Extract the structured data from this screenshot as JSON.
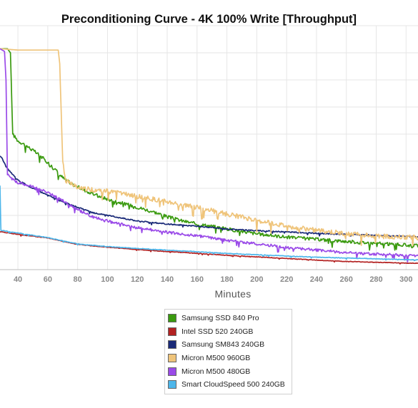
{
  "chart_data": {
    "type": "line",
    "title": "Preconditioning Curve - 4K 100% Write [Throughput]",
    "xlabel": "Minutes",
    "ylabel": "",
    "xlim": [
      28,
      308
    ],
    "ylim": [
      0,
      9
    ],
    "x_ticks": [
      40,
      60,
      80,
      100,
      120,
      140,
      160,
      180,
      200,
      220,
      240,
      260,
      280,
      300
    ],
    "grid": true,
    "legend_position": "bottom",
    "series": [
      {
        "name": "Samsung SSD 840 Pro",
        "color": "#3a9a0f",
        "noise": 0.12,
        "points": [
          [
            28,
            8.15
          ],
          [
            33,
            8.15
          ],
          [
            35,
            8.0
          ],
          [
            36.5,
            5.0
          ],
          [
            40,
            4.75
          ],
          [
            45,
            4.6
          ],
          [
            50,
            4.4
          ],
          [
            55,
            4.2
          ],
          [
            60,
            3.95
          ],
          [
            65,
            3.7
          ],
          [
            68,
            3.5
          ],
          [
            72,
            3.3
          ],
          [
            80,
            3.05
          ],
          [
            90,
            2.8
          ],
          [
            100,
            2.6
          ],
          [
            110,
            2.45
          ],
          [
            120,
            2.3
          ],
          [
            130,
            2.15
          ],
          [
            140,
            1.95
          ],
          [
            150,
            1.8
          ],
          [
            160,
            1.68
          ],
          [
            170,
            1.6
          ],
          [
            180,
            1.5
          ],
          [
            200,
            1.32
          ],
          [
            220,
            1.2
          ],
          [
            240,
            1.12
          ],
          [
            260,
            1.04
          ],
          [
            280,
            0.97
          ],
          [
            300,
            0.9
          ],
          [
            308,
            0.88
          ]
        ]
      },
      {
        "name": "Intel SSD 520 240GB",
        "color": "#b32222",
        "noise": 0.02,
        "points": [
          [
            28,
            1.4
          ],
          [
            40,
            1.3
          ],
          [
            60,
            1.17
          ],
          [
            80,
            0.93
          ],
          [
            100,
            0.83
          ],
          [
            120,
            0.74
          ],
          [
            140,
            0.67
          ],
          [
            160,
            0.6
          ],
          [
            180,
            0.53
          ],
          [
            200,
            0.47
          ],
          [
            220,
            0.41
          ],
          [
            240,
            0.35
          ],
          [
            260,
            0.3
          ],
          [
            280,
            0.27
          ],
          [
            300,
            0.24
          ],
          [
            308,
            0.23
          ]
        ]
      },
      {
        "name": "Samsung SM843 240GB",
        "color": "#1a2a78",
        "noise": 0.04,
        "points": [
          [
            28,
            4.2
          ],
          [
            30,
            4.05
          ],
          [
            32,
            3.8
          ],
          [
            35,
            3.6
          ],
          [
            40,
            3.3
          ],
          [
            50,
            3.0
          ],
          [
            60,
            2.75
          ],
          [
            70,
            2.5
          ],
          [
            80,
            2.3
          ],
          [
            90,
            2.1
          ],
          [
            100,
            2.0
          ],
          [
            120,
            1.8
          ],
          [
            140,
            1.68
          ],
          [
            160,
            1.6
          ],
          [
            180,
            1.5
          ],
          [
            200,
            1.44
          ],
          [
            220,
            1.39
          ],
          [
            240,
            1.34
          ],
          [
            260,
            1.3
          ],
          [
            280,
            1.26
          ],
          [
            300,
            1.23
          ],
          [
            308,
            1.22
          ]
        ]
      },
      {
        "name": "Micron M500 960GB",
        "color": "#efc47a",
        "noise": 0.18,
        "points": [
          [
            28,
            8.15
          ],
          [
            40,
            8.1
          ],
          [
            60,
            8.1
          ],
          [
            67,
            8.1
          ],
          [
            68,
            7.6
          ],
          [
            70,
            4.0
          ],
          [
            72,
            3.3
          ],
          [
            80,
            3.0
          ],
          [
            100,
            2.9
          ],
          [
            120,
            2.7
          ],
          [
            140,
            2.5
          ],
          [
            160,
            2.3
          ],
          [
            180,
            2.05
          ],
          [
            200,
            1.82
          ],
          [
            220,
            1.6
          ],
          [
            240,
            1.45
          ],
          [
            260,
            1.32
          ],
          [
            280,
            1.24
          ],
          [
            300,
            1.2
          ],
          [
            308,
            1.18
          ]
        ]
      },
      {
        "name": "Micron M500 480GB",
        "color": "#9a4ae8",
        "noise": 0.1,
        "points": [
          [
            28,
            8.15
          ],
          [
            31,
            8.05
          ],
          [
            32,
            7.0
          ],
          [
            33,
            3.5
          ],
          [
            36,
            3.35
          ],
          [
            40,
            3.2
          ],
          [
            50,
            3.05
          ],
          [
            60,
            2.85
          ],
          [
            70,
            2.55
          ],
          [
            80,
            2.2
          ],
          [
            90,
            1.95
          ],
          [
            100,
            1.8
          ],
          [
            120,
            1.55
          ],
          [
            140,
            1.38
          ],
          [
            160,
            1.25
          ],
          [
            180,
            1.08
          ],
          [
            200,
            0.95
          ],
          [
            220,
            0.82
          ],
          [
            240,
            0.72
          ],
          [
            260,
            0.63
          ],
          [
            280,
            0.57
          ],
          [
            300,
            0.53
          ],
          [
            308,
            0.52
          ]
        ]
      },
      {
        "name": "Smart CloudSpeed 500 240GB",
        "color": "#4db6ea",
        "noise": 0.02,
        "points": [
          [
            28,
            3.1
          ],
          [
            28.6,
            1.45
          ],
          [
            40,
            1.35
          ],
          [
            60,
            1.18
          ],
          [
            80,
            0.95
          ],
          [
            100,
            0.85
          ],
          [
            120,
            0.78
          ],
          [
            140,
            0.72
          ],
          [
            160,
            0.66
          ],
          [
            180,
            0.6
          ],
          [
            200,
            0.55
          ],
          [
            220,
            0.5
          ],
          [
            240,
            0.46
          ],
          [
            260,
            0.43
          ],
          [
            280,
            0.4
          ],
          [
            300,
            0.37
          ],
          [
            308,
            0.36
          ]
        ]
      }
    ]
  }
}
